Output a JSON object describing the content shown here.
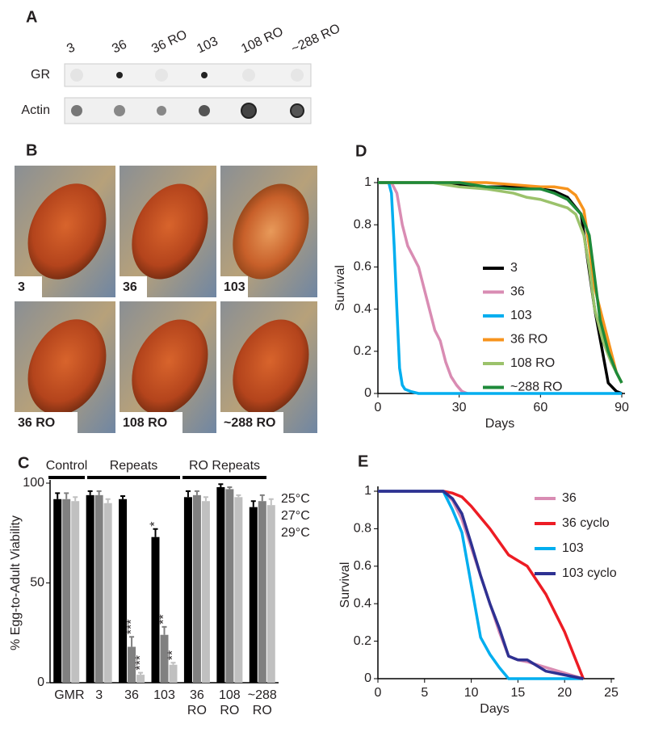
{
  "panel_a": {
    "label": "A",
    "columns": [
      "3",
      "36",
      "36 RO",
      "103",
      "108 RO",
      "~288 RO"
    ],
    "rows": [
      "GR",
      "Actin"
    ]
  },
  "panel_b": {
    "label": "B",
    "eyes": [
      "3",
      "36",
      "103",
      "36 RO",
      "108 RO",
      "~288 RO"
    ]
  },
  "chart_data": [
    {
      "type": "bar",
      "panel": "C",
      "y_label": "% Egg-to-Adult Viability",
      "groups": [
        "Control",
        "Repeats",
        "RO Repeats"
      ],
      "categories": [
        "GMR",
        "3",
        "36",
        "103",
        "36 RO",
        "108 RO",
        "~288 RO"
      ],
      "series": [
        {
          "name": "25°C",
          "color": "#000000",
          "values": [
            92,
            94,
            92,
            73,
            93,
            98,
            88
          ],
          "errors": [
            3,
            2,
            1.5,
            4,
            3,
            1.5,
            3
          ],
          "significance": [
            null,
            null,
            null,
            "*",
            null,
            null,
            null
          ]
        },
        {
          "name": "27°C",
          "color": "#808080",
          "values": [
            92,
            94,
            18,
            24,
            94,
            97,
            91
          ],
          "errors": [
            3,
            2,
            5,
            4,
            2,
            1,
            3
          ],
          "significance": [
            null,
            null,
            "***",
            "**",
            null,
            null,
            null
          ]
        },
        {
          "name": "29°C",
          "color": "#c0c0c0",
          "values": [
            91,
            90,
            4,
            9,
            91,
            93,
            89
          ],
          "errors": [
            2,
            2,
            1,
            1,
            2,
            1,
            3
          ],
          "significance": [
            null,
            null,
            "***",
            "**",
            null,
            null,
            null
          ]
        }
      ],
      "ylim": [
        0,
        100
      ],
      "yticks": [
        0,
        50,
        100
      ]
    },
    {
      "type": "line",
      "panel": "D",
      "x_label": "Days",
      "y_label": "Survival",
      "xlim": [
        0,
        90
      ],
      "xticks": [
        0,
        30,
        60,
        90
      ],
      "ylim": [
        0,
        1
      ],
      "yticks": [
        0,
        0.2,
        0.4,
        0.6,
        0.8,
        1
      ],
      "series": [
        {
          "name": "3",
          "color": "#000000",
          "x": [
            0,
            10,
            20,
            30,
            40,
            50,
            60,
            65,
            70,
            75,
            80,
            85,
            88,
            90
          ],
          "values": [
            1,
            1,
            1,
            0.99,
            0.98,
            0.98,
            0.97,
            0.96,
            0.93,
            0.85,
            0.4,
            0.05,
            0.01,
            0
          ]
        },
        {
          "name": "36",
          "color": "#d98cb3",
          "x": [
            0,
            5,
            7,
            9,
            11,
            13,
            15,
            17,
            19,
            21,
            23,
            25,
            27,
            29,
            31,
            33
          ],
          "values": [
            1,
            1,
            0.95,
            0.8,
            0.7,
            0.65,
            0.6,
            0.5,
            0.4,
            0.3,
            0.25,
            0.15,
            0.08,
            0.04,
            0.01,
            0
          ]
        },
        {
          "name": "103",
          "color": "#00aeef",
          "x": [
            0,
            4,
            5,
            6,
            7,
            8,
            9,
            10,
            12,
            15,
            20,
            90
          ],
          "values": [
            1,
            1,
            0.95,
            0.7,
            0.4,
            0.12,
            0.04,
            0.02,
            0.01,
            0,
            0,
            0
          ]
        },
        {
          "name": "36 RO",
          "color": "#f7941d",
          "x": [
            0,
            10,
            20,
            30,
            40,
            50,
            60,
            65,
            70,
            73,
            76,
            78,
            80,
            83,
            86,
            88,
            90
          ],
          "values": [
            1,
            1,
            1,
            1,
            1,
            0.99,
            0.98,
            0.98,
            0.97,
            0.94,
            0.87,
            0.7,
            0.5,
            0.35,
            0.2,
            0.1,
            0.05
          ]
        },
        {
          "name": "108 RO",
          "color": "#9bc26b",
          "x": [
            0,
            20,
            30,
            40,
            50,
            55,
            60,
            65,
            70,
            73,
            76,
            78,
            80,
            83,
            86,
            90
          ],
          "values": [
            1,
            1,
            0.98,
            0.97,
            0.95,
            0.93,
            0.92,
            0.9,
            0.88,
            0.85,
            0.75,
            0.6,
            0.4,
            0.25,
            0.15,
            0.05
          ]
        },
        {
          "name": "~288 RO",
          "color": "#1e8a3a",
          "x": [
            0,
            30,
            40,
            50,
            60,
            65,
            70,
            75,
            78,
            80,
            82,
            85,
            88,
            90
          ],
          "values": [
            1,
            1,
            0.98,
            0.97,
            0.97,
            0.95,
            0.92,
            0.85,
            0.75,
            0.55,
            0.35,
            0.2,
            0.1,
            0.05
          ]
        }
      ]
    },
    {
      "type": "line",
      "panel": "E",
      "x_label": "Days",
      "y_label": "Survival",
      "xlim": [
        0,
        25
      ],
      "xticks": [
        0,
        5,
        10,
        15,
        20,
        25
      ],
      "ylim": [
        0,
        1
      ],
      "yticks": [
        0,
        0.2,
        0.4,
        0.6,
        0.8,
        1
      ],
      "series": [
        {
          "name": "36",
          "color": "#d98cb3",
          "x": [
            0,
            7,
            8,
            9,
            10,
            11,
            12,
            13,
            14,
            15,
            16,
            18,
            20,
            22
          ],
          "values": [
            1,
            1,
            0.95,
            0.85,
            0.7,
            0.55,
            0.4,
            0.25,
            0.12,
            0.1,
            0.09,
            0.06,
            0.03,
            0
          ]
        },
        {
          "name": "36 cyclo",
          "color": "#ed1c24",
          "x": [
            0,
            7,
            8,
            9,
            10,
            11,
            12,
            13,
            14,
            15,
            16,
            18,
            20,
            22
          ],
          "values": [
            1,
            1,
            0.99,
            0.97,
            0.92,
            0.86,
            0.8,
            0.73,
            0.66,
            0.63,
            0.6,
            0.45,
            0.25,
            0
          ]
        },
        {
          "name": "103",
          "color": "#00aeef",
          "x": [
            0,
            7,
            8,
            9,
            10,
            11,
            12,
            13,
            14,
            22
          ],
          "values": [
            1,
            1,
            0.9,
            0.78,
            0.5,
            0.22,
            0.13,
            0.06,
            0,
            0
          ]
        },
        {
          "name": "103 cyclo",
          "color": "#2e3192",
          "x": [
            0,
            7,
            8,
            9,
            10,
            11,
            12,
            13,
            14,
            15,
            16,
            18,
            20,
            22
          ],
          "values": [
            1,
            1,
            0.96,
            0.88,
            0.72,
            0.55,
            0.4,
            0.27,
            0.12,
            0.1,
            0.1,
            0.04,
            0.02,
            0
          ]
        }
      ]
    }
  ]
}
